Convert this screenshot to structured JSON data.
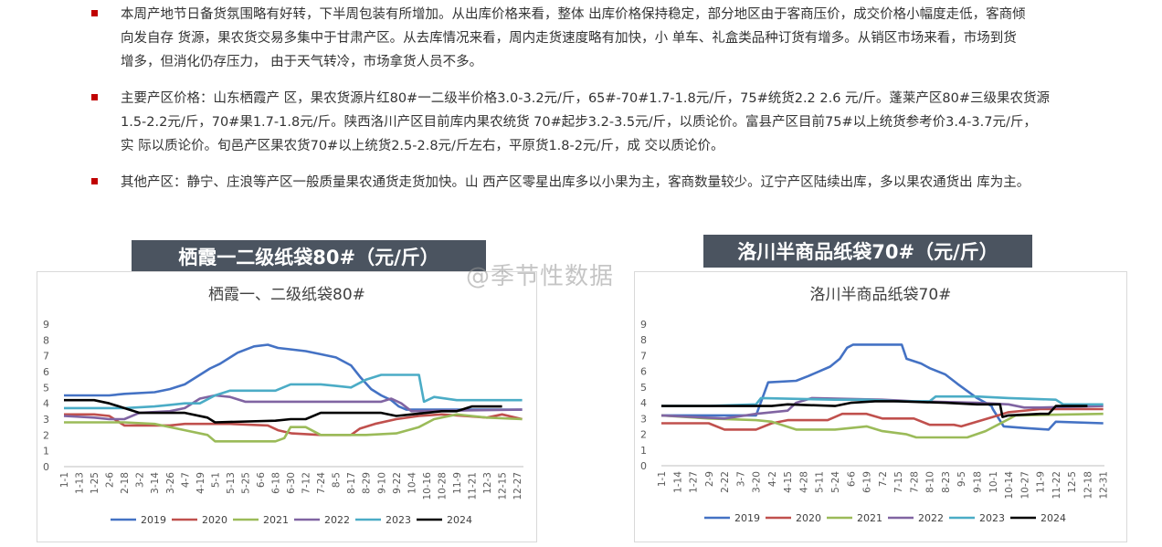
{
  "bullets": [
    {
      "lines": [
        "本周产地节日备货氛围略有好转，下半周包装有所增加。从出库价格来看，整体 出库价格保持稳定，部分地区由于客商压价，成交价格小幅度走低，客商倾",
        "向发自存 货源，果农货交易多集中于甘肃产区。从去库情况来看，周内走货速度略有加快，小 单车、礼盒类品种订货有增多。从销区市场来看，市场到货",
        "增多，但消化仍存压力， 由于天气转冷，市场拿货人员不多。"
      ]
    },
    {
      "lines": [
        "主要产区价格：山东栖霞产 区，果农货源片红80#一二级半价格3.0-3.2元/斤，65#-70#1.7-1.8元/斤，75#统货2.2 2.6 元/斤。蓬莱产区80#三级果农货源",
        "1.5-2.2元/斤，70#果1.7-1.8元/斤。陕西洛川产区目前库内果农统货 70#起步3.2-3.5元/斤，以质论价。富县产区目前75#以上统货参考价3.4-3.7元/斤，",
        "实 际以质论价。旬邑产区果农货70#以上统货2.5-2.8元/斤左右，平原货1.8-2元/斤，成 交以质论价。"
      ]
    },
    {
      "lines": [
        " 其他产区：静宁、庄浪等产区一般质量果农通货走货加快。山 西产区零星出库多以小果为主，客商数量较少。辽宁产区陆续出库，多以果农通货出 库为主。"
      ]
    }
  ],
  "watermark": "@季节性数据",
  "colors": {
    "2019": "#4472c4",
    "2020": "#c0504d",
    "2021": "#9bbb59",
    "2022": "#8064a2",
    "2023": "#4bacc6",
    "2024": "#000000"
  },
  "banners": [
    "栖霞一二级纸袋80#（元/斤）",
    "洛川半商品纸袋70#（元/斤）"
  ],
  "chart_data": [
    {
      "type": "line",
      "title": "栖霞一、二级纸袋80#",
      "ylim": [
        0,
        9
      ],
      "yticks": [
        0,
        1,
        2,
        3,
        4,
        5,
        6,
        7,
        8,
        9
      ],
      "x_dates": [
        "1-1",
        "1-13",
        "1-25",
        "2-6",
        "2-18",
        "3-2",
        "3-14",
        "3-26",
        "4-7",
        "4-19",
        "5-1",
        "5-13",
        "5-25",
        "6-6",
        "6-18",
        "6-30",
        "7-12",
        "7-24",
        "8-5",
        "8-17",
        "8-29",
        "9-10",
        "9-22",
        "10-4",
        "10-16",
        "10-28",
        "11-9",
        "11-21",
        "12-3",
        "12-15",
        "12-27"
      ],
      "legend": "bottom",
      "series": [
        {
          "name": "2019",
          "points": [
            [
              "1-1",
              4.5
            ],
            [
              "2-6",
              4.5
            ],
            [
              "2-18",
              4.6
            ],
            [
              "3-14",
              4.7
            ],
            [
              "3-26",
              4.9
            ],
            [
              "4-7",
              5.2
            ],
            [
              "4-19",
              5.8
            ],
            [
              "4-27",
              6.2
            ],
            [
              "5-5",
              6.5
            ],
            [
              "5-19",
              7.2
            ],
            [
              "6-1",
              7.6
            ],
            [
              "6-12",
              7.7
            ],
            [
              "6-20",
              7.5
            ],
            [
              "7-12",
              7.3
            ],
            [
              "7-24",
              7.1
            ],
            [
              "8-5",
              6.9
            ],
            [
              "8-17",
              6.4
            ],
            [
              "8-25",
              5.6
            ],
            [
              "9-2",
              4.9
            ],
            [
              "9-10",
              4.5
            ],
            [
              "9-18",
              4.2
            ],
            [
              "9-24",
              3.8
            ],
            [
              "9-30",
              3.6
            ],
            [
              "12-31",
              3.6
            ]
          ]
        },
        {
          "name": "2020",
          "points": [
            [
              "1-1",
              3.3
            ],
            [
              "1-25",
              3.3
            ],
            [
              "2-6",
              3.2
            ],
            [
              "2-18",
              2.6
            ],
            [
              "3-26",
              2.6
            ],
            [
              "4-7",
              2.7
            ],
            [
              "5-13",
              2.7
            ],
            [
              "6-12",
              2.6
            ],
            [
              "6-20",
              2.3
            ],
            [
              "7-1",
              2.1
            ],
            [
              "7-24",
              2.0
            ],
            [
              "8-17",
              2.0
            ],
            [
              "8-24",
              2.4
            ],
            [
              "9-5",
              2.7
            ],
            [
              "9-22",
              3.0
            ],
            [
              "10-10",
              3.2
            ],
            [
              "10-28",
              3.3
            ],
            [
              "11-15",
              3.2
            ],
            [
              "12-3",
              3.1
            ],
            [
              "12-15",
              3.3
            ],
            [
              "12-31",
              3.0
            ]
          ]
        },
        {
          "name": "2021",
          "points": [
            [
              "1-1",
              2.8
            ],
            [
              "2-18",
              2.8
            ],
            [
              "3-14",
              2.7
            ],
            [
              "4-7",
              2.3
            ],
            [
              "4-25",
              2.0
            ],
            [
              "5-1",
              1.6
            ],
            [
              "6-18",
              1.6
            ],
            [
              "6-25",
              1.8
            ],
            [
              "6-30",
              2.5
            ],
            [
              "7-12",
              2.5
            ],
            [
              "7-24",
              2.0
            ],
            [
              "8-29",
              2.0
            ],
            [
              "9-22",
              2.1
            ],
            [
              "10-10",
              2.5
            ],
            [
              "10-22",
              3.0
            ],
            [
              "11-9",
              3.3
            ],
            [
              "12-3",
              3.1
            ],
            [
              "12-31",
              3.0
            ]
          ]
        },
        {
          "name": "2022",
          "points": [
            [
              "1-1",
              3.2
            ],
            [
              "1-25",
              3.1
            ],
            [
              "2-6",
              3.0
            ],
            [
              "2-18",
              3.0
            ],
            [
              "3-2",
              3.4
            ],
            [
              "3-26",
              3.5
            ],
            [
              "4-7",
              3.7
            ],
            [
              "4-19",
              4.3
            ],
            [
              "5-1",
              4.5
            ],
            [
              "5-13",
              4.4
            ],
            [
              "5-25",
              4.1
            ],
            [
              "8-29",
              4.1
            ],
            [
              "9-10",
              4.1
            ],
            [
              "9-18",
              4.3
            ],
            [
              "9-26",
              4.0
            ],
            [
              "10-4",
              3.5
            ],
            [
              "12-31",
              3.6
            ]
          ]
        },
        {
          "name": "2023",
          "points": [
            [
              "1-1",
              3.7
            ],
            [
              "2-18",
              3.7
            ],
            [
              "3-14",
              3.8
            ],
            [
              "3-26",
              3.9
            ],
            [
              "4-7",
              4.0
            ],
            [
              "4-19",
              4.0
            ],
            [
              "5-1",
              4.5
            ],
            [
              "5-13",
              4.8
            ],
            [
              "6-18",
              4.8
            ],
            [
              "6-30",
              5.2
            ],
            [
              "7-24",
              5.2
            ],
            [
              "8-5",
              5.1
            ],
            [
              "8-17",
              5.0
            ],
            [
              "8-29",
              5.5
            ],
            [
              "9-10",
              5.8
            ],
            [
              "10-10",
              5.8
            ],
            [
              "10-14",
              4.1
            ],
            [
              "10-22",
              4.4
            ],
            [
              "11-9",
              4.2
            ],
            [
              "12-31",
              4.2
            ]
          ]
        },
        {
          "name": "2024",
          "points": [
            [
              "1-1",
              4.2
            ],
            [
              "1-25",
              4.2
            ],
            [
              "2-6",
              4.0
            ],
            [
              "2-18",
              3.7
            ],
            [
              "3-2",
              3.4
            ],
            [
              "4-7",
              3.4
            ],
            [
              "4-25",
              3.1
            ],
            [
              "5-1",
              2.8
            ],
            [
              "6-18",
              2.9
            ],
            [
              "6-30",
              3.0
            ],
            [
              "7-12",
              3.0
            ],
            [
              "7-24",
              3.4
            ],
            [
              "9-10",
              3.4
            ],
            [
              "9-22",
              3.2
            ],
            [
              "10-4",
              3.3
            ],
            [
              "10-28",
              3.5
            ],
            [
              "11-9",
              3.5
            ],
            [
              "11-21",
              3.8
            ],
            [
              "12-15",
              3.8
            ]
          ]
        }
      ]
    },
    {
      "type": "line",
      "title": "洛川半商品纸袋70#",
      "ylim": [
        0,
        9
      ],
      "yticks": [
        0,
        1,
        2,
        3,
        4,
        5,
        6,
        7,
        8,
        9
      ],
      "x_dates": [
        "1-1",
        "1-14",
        "1-27",
        "2-9",
        "2-22",
        "3-7",
        "3-20",
        "4-2",
        "4-15",
        "4-28",
        "5-11",
        "5-24",
        "6-6",
        "6-19",
        "7-2",
        "7-15",
        "7-28",
        "8-10",
        "8-23",
        "9-5",
        "9-18",
        "10-1",
        "10-14",
        "10-27",
        "11-9",
        "11-22",
        "12-5",
        "12-18",
        "12-31"
      ],
      "legend": "bottom",
      "series": [
        {
          "name": "2019",
          "points": [
            [
              "1-1",
              3.2
            ],
            [
              "2-9",
              3.2
            ],
            [
              "3-20",
              3.2
            ],
            [
              "3-30",
              5.3
            ],
            [
              "4-22",
              5.4
            ],
            [
              "5-2",
              5.7
            ],
            [
              "5-11",
              6.0
            ],
            [
              "5-20",
              6.3
            ],
            [
              "5-28",
              6.8
            ],
            [
              "6-3",
              7.5
            ],
            [
              "6-8",
              7.7
            ],
            [
              "7-18",
              7.7
            ],
            [
              "7-22",
              6.8
            ],
            [
              "8-3",
              6.5
            ],
            [
              "8-10",
              6.2
            ],
            [
              "8-23",
              5.8
            ],
            [
              "9-2",
              5.2
            ],
            [
              "9-18",
              4.3
            ],
            [
              "9-30",
              3.8
            ],
            [
              "10-1",
              3.6
            ],
            [
              "10-10",
              2.5
            ],
            [
              "10-27",
              2.4
            ],
            [
              "11-16",
              2.3
            ],
            [
              "11-22",
              2.8
            ],
            [
              "12-31",
              2.7
            ]
          ]
        },
        {
          "name": "2020",
          "points": [
            [
              "1-1",
              2.7
            ],
            [
              "2-9",
              2.7
            ],
            [
              "2-22",
              2.3
            ],
            [
              "3-20",
              2.3
            ],
            [
              "4-2",
              2.7
            ],
            [
              "4-15",
              2.9
            ],
            [
              "5-18",
              2.9
            ],
            [
              "5-30",
              3.3
            ],
            [
              "6-19",
              3.3
            ],
            [
              "7-2",
              3.0
            ],
            [
              "7-28",
              3.0
            ],
            [
              "8-10",
              2.6
            ],
            [
              "8-30",
              2.6
            ],
            [
              "9-5",
              2.5
            ],
            [
              "9-18",
              2.8
            ],
            [
              "10-1",
              3.1
            ],
            [
              "10-14",
              3.4
            ],
            [
              "11-9",
              3.6
            ],
            [
              "12-31",
              3.6
            ]
          ]
        },
        {
          "name": "2021",
          "points": [
            [
              "1-1",
              3.2
            ],
            [
              "2-9",
              3.0
            ],
            [
              "3-20",
              2.9
            ],
            [
              "4-2",
              2.8
            ],
            [
              "4-22",
              2.3
            ],
            [
              "5-24",
              2.3
            ],
            [
              "6-19",
              2.5
            ],
            [
              "7-2",
              2.2
            ],
            [
              "7-22",
              2.0
            ],
            [
              "7-30",
              1.8
            ],
            [
              "9-10",
              1.8
            ],
            [
              "9-25",
              2.2
            ],
            [
              "10-10",
              2.8
            ],
            [
              "10-20",
              3.2
            ],
            [
              "12-31",
              3.3
            ]
          ]
        },
        {
          "name": "2022",
          "points": [
            [
              "1-1",
              3.2
            ],
            [
              "2-22",
              3.0
            ],
            [
              "3-20",
              3.3
            ],
            [
              "4-2",
              3.4
            ],
            [
              "4-15",
              3.5
            ],
            [
              "4-22",
              4.0
            ],
            [
              "5-5",
              4.3
            ],
            [
              "7-2",
              4.2
            ],
            [
              "7-28",
              4.1
            ],
            [
              "9-18",
              4.0
            ],
            [
              "10-14",
              3.9
            ],
            [
              "10-27",
              3.7
            ],
            [
              "11-9",
              3.7
            ],
            [
              "12-31",
              3.8
            ]
          ]
        },
        {
          "name": "2023",
          "points": [
            [
              "1-1",
              3.8
            ],
            [
              "2-9",
              3.8
            ],
            [
              "3-20",
              3.9
            ],
            [
              "3-24",
              4.3
            ],
            [
              "5-24",
              4.2
            ],
            [
              "6-19",
              4.2
            ],
            [
              "7-15",
              4.1
            ],
            [
              "8-10",
              4.1
            ],
            [
              "8-15",
              4.4
            ],
            [
              "9-18",
              4.4
            ],
            [
              "10-14",
              4.3
            ],
            [
              "11-22",
              4.2
            ],
            [
              "11-28",
              3.9
            ],
            [
              "12-31",
              3.9
            ]
          ]
        },
        {
          "name": "2024",
          "points": [
            [
              "1-1",
              3.8
            ],
            [
              "2-9",
              3.8
            ],
            [
              "3-7",
              3.8
            ],
            [
              "4-2",
              3.8
            ],
            [
              "4-15",
              3.9
            ],
            [
              "5-24",
              3.8
            ],
            [
              "6-6",
              4.0
            ],
            [
              "6-26",
              4.1
            ],
            [
              "7-15",
              4.1
            ],
            [
              "8-23",
              4.0
            ],
            [
              "9-18",
              3.9
            ],
            [
              "10-7",
              3.9
            ],
            [
              "10-9",
              3.1
            ],
            [
              "10-14",
              3.2
            ],
            [
              "11-9",
              3.3
            ],
            [
              "11-16",
              3.3
            ],
            [
              "11-22",
              3.8
            ],
            [
              "12-18",
              3.8
            ]
          ]
        }
      ]
    }
  ]
}
